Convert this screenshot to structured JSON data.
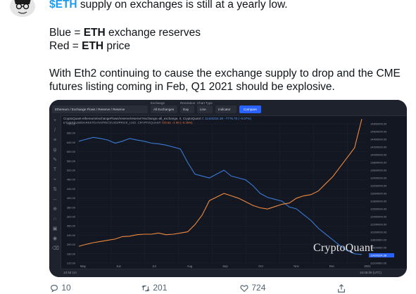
{
  "tweet": {
    "line1_cashtag": "$ETH",
    "line1_rest": " supply on exchanges is still at a yearly low.",
    "line2_prefix": "Blue = ",
    "line2_bold": "ETH",
    "line2_rest": " exchange reserves",
    "line3_prefix": "Red = ",
    "line3_bold": "ETH",
    "line3_rest": " price",
    "line4": "With Eth2 continuing to cause the exchange supply to drop and the CME",
    "line5": "futures listing coming in Feb, Q1 2021 should be explosive."
  },
  "chart_ui": {
    "breadcrumb": "Ethereum / Exchange Flows / Reserve / Reserve",
    "exchange_label": "Exchange",
    "exchange_value": "All Exchanges",
    "resolution_label": "Resolution",
    "resolution_value": "Day",
    "chart_type_label": "Chart Type",
    "chart_type_value": "Line",
    "indicator_label": "Indicator",
    "compare_label": "Compare",
    "info_line1": "CryptoQuant-ethereum/exchangeFlows/reserve/reserve?exchange=all_exchange, 0, CryptoQuant",
    "info_value1": "C 11420224.38 −7776.70 (−0.07%)",
    "info_line2": "ETHEREUM/MARKETDATA/PRICEUSD/PRICE_USD, CRYPTOQUANT",
    "info_value2": "723.54 −1.90 (−0.26%)",
    "watermark": "CryptoQuant",
    "timestamp": "16:05:08 (UTC)",
    "bottom_left": "1d  5d  1m"
  },
  "chart_data": {
    "type": "line",
    "title": "",
    "x_labels": [
      "May",
      "Jun",
      "Jul",
      "Aug",
      "Sep",
      "Oct",
      "Nov",
      "Dec",
      "2021"
    ],
    "left_axis_ticks": [
      "700.00",
      "680.00",
      "640.00",
      "600.00",
      "560.00",
      "520.00",
      "480.00",
      "440.00",
      "400.00",
      "360.00",
      "320.00",
      "280.00",
      "240.00",
      "200.00",
      "160.00",
      "120.00"
    ],
    "right_axis_ticks": [
      "14800000.00",
      "14600000.00",
      "14400000.00",
      "14200000.00",
      "14000000.00",
      "13800000.00",
      "13600000.00",
      "13400000.00",
      "13200000.00",
      "13000000.00",
      "12800000.00",
      "12600000.00",
      "12400000.00",
      "12200000.00",
      "12000000.00",
      "11800000.00",
      "11600000.00",
      "11420224.38",
      "11200000.00"
    ],
    "series": [
      {
        "name": "Blue = ETH exchange reserves",
        "color": "#3a7bd5",
        "values": [
          14350000,
          14400000,
          14450000,
          14420000,
          14380000,
          14300000,
          14350000,
          14420000,
          14380000,
          14350000,
          14300000,
          14280000,
          14250000,
          14200000,
          14150000,
          13800000,
          13500000,
          13450000,
          13400000,
          13500000,
          13600000,
          13450000,
          13400000,
          13350000,
          13200000,
          13000000,
          12900000,
          12850000,
          12800000,
          12650000,
          12600000,
          12450000,
          12300000,
          12100000,
          11950000,
          11800000,
          11650000,
          11520000,
          11440000,
          11420224
        ]
      },
      {
        "name": "Red = ETH price",
        "color": "#f08a3c",
        "values": [
          190,
          198,
          205,
          210,
          215,
          220,
          230,
          232,
          238,
          240,
          240,
          245,
          238,
          240,
          245,
          250,
          280,
          320,
          380,
          395,
          410,
          400,
          390,
          375,
          360,
          350,
          345,
          355,
          365,
          370,
          390,
          400,
          405,
          420,
          450,
          480,
          520,
          560,
          600,
          720
        ]
      }
    ]
  },
  "actions": {
    "reply_count": "10",
    "retweet_count": "201",
    "like_count": "724"
  }
}
